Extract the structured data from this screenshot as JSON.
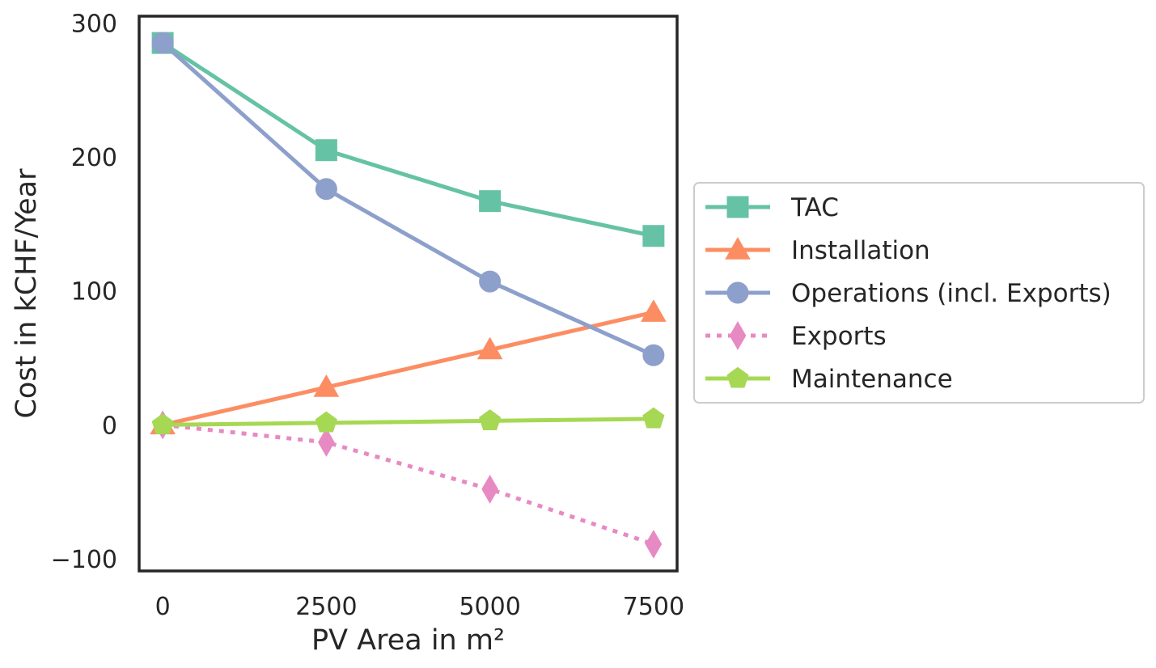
{
  "chart_data": {
    "type": "line",
    "xlabel": "PV Area in m²",
    "ylabel": "Cost in kCHF/Year",
    "x": [
      0,
      2500,
      5000,
      7500
    ],
    "x_ticks": [
      "0",
      "2500",
      "5000",
      "7500"
    ],
    "y_ticks": [
      "−100",
      "0",
      "100",
      "200",
      "300"
    ],
    "y_tick_values": [
      -100,
      0,
      100,
      200,
      300
    ],
    "xlim": [
      -360,
      7860
    ],
    "ylim": [
      -109,
      305
    ],
    "grid": false,
    "legend_position": "center-right outside",
    "series": [
      {
        "name": "TAC",
        "marker": "square",
        "line": "solid",
        "color": "#66c2a5",
        "values": [
          285,
          205,
          167,
          141
        ]
      },
      {
        "name": "Installation",
        "marker": "triangle",
        "line": "solid",
        "color": "#fc8d62",
        "values": [
          0,
          28,
          56,
          84
        ]
      },
      {
        "name": "Operations (incl. Exports)",
        "marker": "circle",
        "line": "solid",
        "color": "#8da0cb",
        "values": [
          285,
          176,
          107,
          52
        ]
      },
      {
        "name": "Exports",
        "marker": "diamond",
        "line": "dotted",
        "color": "#e78ac3",
        "values": [
          0,
          -13,
          -48,
          -89
        ]
      },
      {
        "name": "Maintenance",
        "marker": "pentagon",
        "line": "solid",
        "color": "#a6d854",
        "values": [
          0,
          1.5,
          3,
          4.5
        ]
      }
    ]
  }
}
